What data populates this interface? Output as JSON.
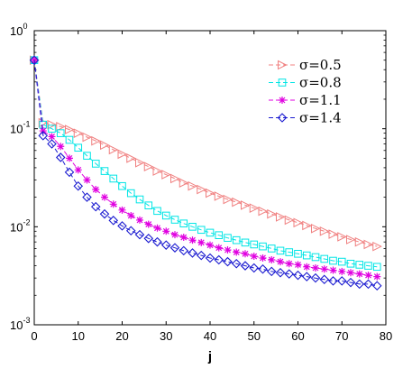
{
  "chart_data": {
    "type": "line",
    "title": "",
    "xlabel": "j",
    "ylabel": "",
    "yscale": "log",
    "xlim": [
      0,
      80
    ],
    "ylim": [
      0.001,
      1
    ],
    "grid": false,
    "legend_position": "top-right",
    "x_ticks": [
      0,
      10,
      20,
      30,
      40,
      50,
      60,
      70,
      80
    ],
    "x_tick_labels": [
      "0",
      "10",
      "20",
      "30",
      "40",
      "50",
      "60",
      "70",
      "80"
    ],
    "y_ticks": [
      0.001,
      0.01,
      0.1,
      1
    ],
    "y_tick_bases": [
      "10",
      "10",
      "10",
      "10"
    ],
    "y_tick_exponents": [
      "-3",
      "-2",
      "-1",
      "0"
    ],
    "x": [
      0,
      2,
      4,
      6,
      8,
      10,
      12,
      14,
      16,
      18,
      20,
      22,
      24,
      26,
      28,
      30,
      32,
      34,
      36,
      38,
      40,
      42,
      44,
      46,
      48,
      50,
      52,
      54,
      56,
      58,
      60,
      62,
      64,
      66,
      68,
      70,
      72,
      74,
      76,
      78
    ],
    "series": [
      {
        "name": "σ=0.5",
        "color": "#f08080",
        "marker": "triangle-right",
        "values": [
          0.5,
          0.115,
          0.11,
          0.105,
          0.098,
          0.09,
          0.082,
          0.075,
          0.068,
          0.061,
          0.055,
          0.05,
          0.045,
          0.041,
          0.037,
          0.034,
          0.031,
          0.028,
          0.026,
          0.024,
          0.022,
          0.0205,
          0.019,
          0.0178,
          0.0166,
          0.0155,
          0.0144,
          0.0135,
          0.0126,
          0.0117,
          0.011,
          0.0103,
          0.0096,
          0.009,
          0.0084,
          0.0079,
          0.0074,
          0.007,
          0.0066,
          0.0063
        ]
      },
      {
        "name": "σ=0.8",
        "color": "#00e5e5",
        "marker": "square",
        "values": [
          0.5,
          0.11,
          0.1,
          0.09,
          0.077,
          0.064,
          0.053,
          0.044,
          0.037,
          0.031,
          0.026,
          0.022,
          0.019,
          0.0165,
          0.0145,
          0.013,
          0.0118,
          0.0108,
          0.01,
          0.0093,
          0.0087,
          0.0082,
          0.0077,
          0.0073,
          0.0069,
          0.0066,
          0.0063,
          0.006,
          0.0057,
          0.0055,
          0.0053,
          0.0051,
          0.0049,
          0.0047,
          0.0045,
          0.0044,
          0.0042,
          0.0041,
          0.004,
          0.0039
        ]
      },
      {
        "name": "σ=1.1",
        "color": "#e000e0",
        "marker": "star",
        "values": [
          0.5,
          0.095,
          0.083,
          0.066,
          0.05,
          0.038,
          0.03,
          0.024,
          0.02,
          0.017,
          0.0148,
          0.013,
          0.0117,
          0.0106,
          0.0097,
          0.009,
          0.0083,
          0.0078,
          0.0073,
          0.0069,
          0.0065,
          0.0061,
          0.0058,
          0.0055,
          0.0053,
          0.005,
          0.0048,
          0.0046,
          0.0044,
          0.0042,
          0.0041,
          0.0039,
          0.0038,
          0.0037,
          0.0036,
          0.0035,
          0.0034,
          0.0033,
          0.0032,
          0.0031
        ]
      },
      {
        "name": "σ=1.4",
        "color": "#1a1ad0",
        "marker": "diamond",
        "values": [
          0.5,
          0.085,
          0.07,
          0.051,
          0.036,
          0.026,
          0.02,
          0.016,
          0.0135,
          0.0116,
          0.0102,
          0.0091,
          0.0083,
          0.0076,
          0.007,
          0.0065,
          0.0061,
          0.0057,
          0.0054,
          0.0051,
          0.0048,
          0.0046,
          0.0044,
          0.0042,
          0.004,
          0.0038,
          0.0037,
          0.0035,
          0.0034,
          0.0033,
          0.0032,
          0.0031,
          0.003,
          0.0029,
          0.0028,
          0.0028,
          0.0027,
          0.0026,
          0.0026,
          0.0025
        ]
      }
    ]
  }
}
